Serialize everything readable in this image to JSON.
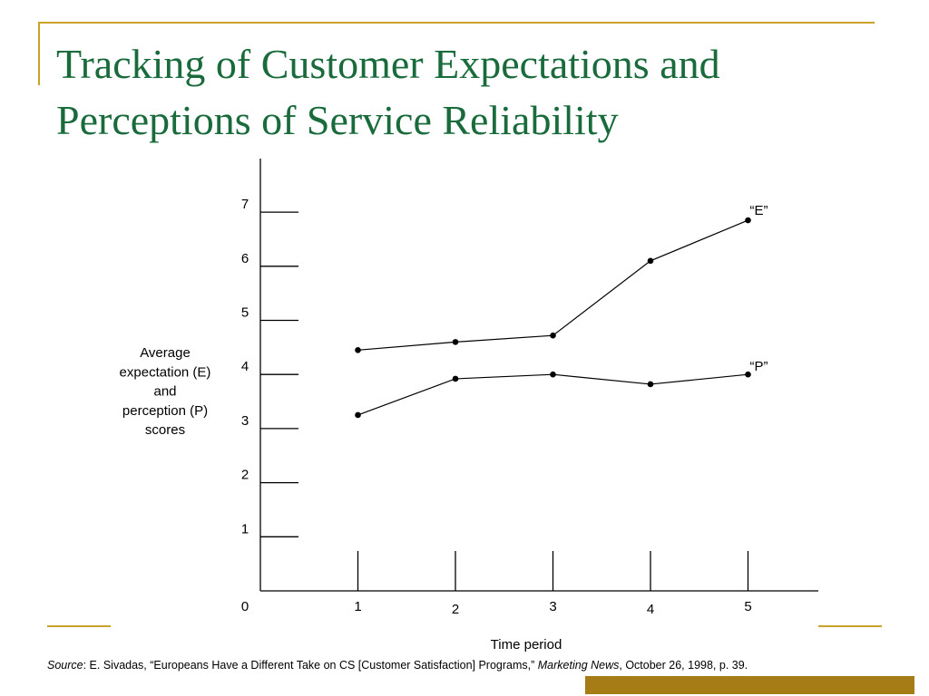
{
  "slide": {
    "title_line1": "Tracking of Customer Expectations and",
    "title_line2": "Perceptions of Service Reliability",
    "colors": {
      "title": "#1A6B3C",
      "accent": "#C9A227",
      "footer_bar": "#A57C16"
    }
  },
  "chart_data": {
    "type": "line",
    "title": "",
    "ylabel_lines": [
      "Average",
      "expectation (E)",
      "and",
      "perception (P)",
      "scores"
    ],
    "xlabel": "Time period",
    "x": [
      1,
      2,
      3,
      4,
      5
    ],
    "x_tick_labels": [
      "1",
      "2",
      "3",
      "4",
      "5"
    ],
    "y_tick_labels": [
      "0",
      "1",
      "2",
      "3",
      "4",
      "5",
      "6",
      "7"
    ],
    "ylim": [
      0,
      8
    ],
    "xlim": [
      0,
      5.8
    ],
    "grid": false,
    "series": [
      {
        "name": "“E”",
        "values": [
          4.45,
          4.6,
          4.72,
          6.1,
          6.85
        ]
      },
      {
        "name": "“P”",
        "values": [
          3.25,
          3.92,
          4.0,
          3.82,
          4.0
        ]
      }
    ]
  },
  "source": {
    "label": "Source",
    "text1": ": E. Sivadas, “Europeans Have a Different Take on CS [Customer Satisfaction] Programs,” ",
    "publication": "Marketing News",
    "text2": ", October 26, 1998, p. 39."
  }
}
